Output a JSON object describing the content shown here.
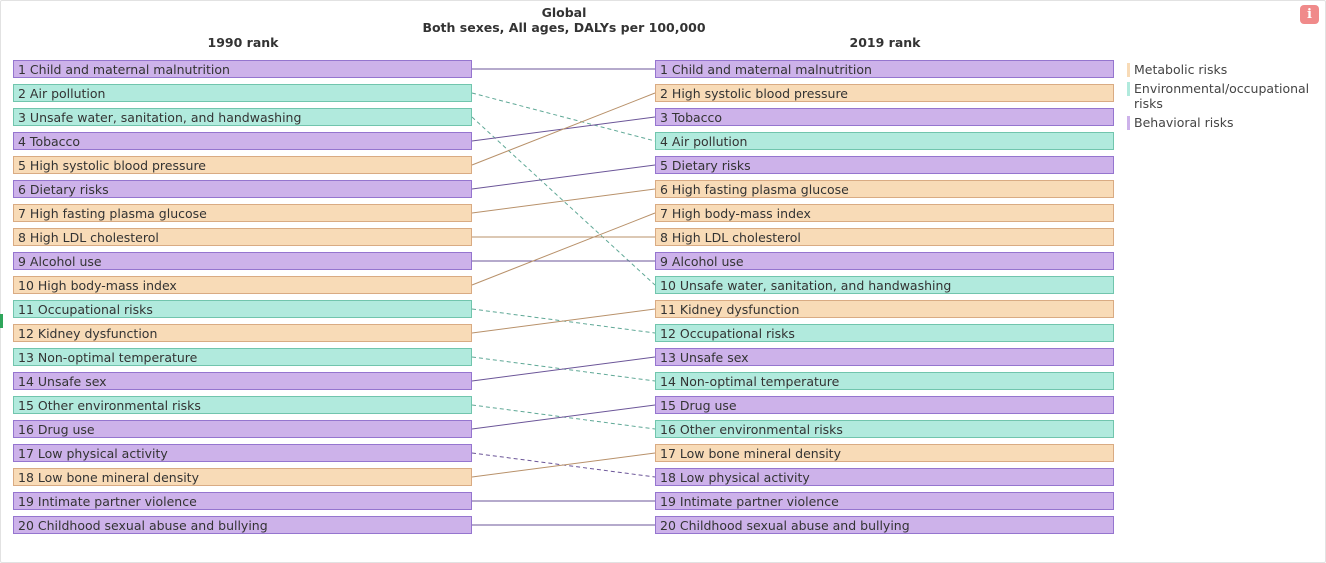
{
  "header": {
    "title": "Global",
    "subtitle": "Both sexes, All ages, DALYs per 100,000",
    "left_column": "1990 rank",
    "right_column": "2019 rank",
    "info_icon": "info-icon",
    "info_label": "i"
  },
  "colors": {
    "Metabolic": "#f8dbb7",
    "Environmental": "#b1eadd",
    "Behavioral": "#cdb2ea",
    "line_Metabolic": "#b8916a",
    "line_Environmental": "#5fa896",
    "line_Behavioral": "#6b5598"
  },
  "legend": [
    {
      "key": "Metabolic",
      "label": "Metabolic risks"
    },
    {
      "key": "Environmental",
      "label": "Environmental/occupational risks"
    },
    {
      "key": "Behavioral",
      "label": "Behavioral risks"
    }
  ],
  "chart_data": {
    "type": "table",
    "title": "Global",
    "subtitle": "Both sexes, All ages, DALYs per 100,000",
    "categories": [
      "Metabolic risks",
      "Environmental/occupational risks",
      "Behavioral risks"
    ],
    "left": [
      {
        "rank": 1,
        "name": "Child and maternal malnutrition",
        "cat": "Behavioral"
      },
      {
        "rank": 2,
        "name": "Air pollution",
        "cat": "Environmental"
      },
      {
        "rank": 3,
        "name": "Unsafe water, sanitation, and handwashing",
        "cat": "Environmental"
      },
      {
        "rank": 4,
        "name": "Tobacco",
        "cat": "Behavioral"
      },
      {
        "rank": 5,
        "name": "High systolic blood pressure",
        "cat": "Metabolic"
      },
      {
        "rank": 6,
        "name": "Dietary risks",
        "cat": "Behavioral"
      },
      {
        "rank": 7,
        "name": "High fasting plasma glucose",
        "cat": "Metabolic"
      },
      {
        "rank": 8,
        "name": "High LDL cholesterol",
        "cat": "Metabolic"
      },
      {
        "rank": 9,
        "name": "Alcohol use",
        "cat": "Behavioral"
      },
      {
        "rank": 10,
        "name": "High body-mass index",
        "cat": "Metabolic"
      },
      {
        "rank": 11,
        "name": "Occupational risks",
        "cat": "Environmental"
      },
      {
        "rank": 12,
        "name": "Kidney dysfunction",
        "cat": "Metabolic"
      },
      {
        "rank": 13,
        "name": "Non-optimal temperature",
        "cat": "Environmental"
      },
      {
        "rank": 14,
        "name": "Unsafe sex",
        "cat": "Behavioral"
      },
      {
        "rank": 15,
        "name": "Other environmental risks",
        "cat": "Environmental"
      },
      {
        "rank": 16,
        "name": "Drug use",
        "cat": "Behavioral"
      },
      {
        "rank": 17,
        "name": "Low physical activity",
        "cat": "Behavioral"
      },
      {
        "rank": 18,
        "name": "Low bone mineral density",
        "cat": "Metabolic"
      },
      {
        "rank": 19,
        "name": "Intimate partner violence",
        "cat": "Behavioral"
      },
      {
        "rank": 20,
        "name": "Childhood sexual abuse and bullying",
        "cat": "Behavioral"
      }
    ],
    "right": [
      {
        "rank": 1,
        "name": "Child and maternal malnutrition",
        "cat": "Behavioral"
      },
      {
        "rank": 2,
        "name": "High systolic blood pressure",
        "cat": "Metabolic"
      },
      {
        "rank": 3,
        "name": "Tobacco",
        "cat": "Behavioral"
      },
      {
        "rank": 4,
        "name": "Air pollution",
        "cat": "Environmental"
      },
      {
        "rank": 5,
        "name": "Dietary risks",
        "cat": "Behavioral"
      },
      {
        "rank": 6,
        "name": "High fasting plasma glucose",
        "cat": "Metabolic"
      },
      {
        "rank": 7,
        "name": "High body-mass index",
        "cat": "Metabolic"
      },
      {
        "rank": 8,
        "name": "High LDL cholesterol",
        "cat": "Metabolic"
      },
      {
        "rank": 9,
        "name": "Alcohol use",
        "cat": "Behavioral"
      },
      {
        "rank": 10,
        "name": "Unsafe water, sanitation, and handwashing",
        "cat": "Environmental"
      },
      {
        "rank": 11,
        "name": "Kidney dysfunction",
        "cat": "Metabolic"
      },
      {
        "rank": 12,
        "name": "Occupational risks",
        "cat": "Environmental"
      },
      {
        "rank": 13,
        "name": "Unsafe sex",
        "cat": "Behavioral"
      },
      {
        "rank": 14,
        "name": "Non-optimal temperature",
        "cat": "Environmental"
      },
      {
        "rank": 15,
        "name": "Drug use",
        "cat": "Behavioral"
      },
      {
        "rank": 16,
        "name": "Other environmental risks",
        "cat": "Environmental"
      },
      {
        "rank": 17,
        "name": "Low bone mineral density",
        "cat": "Metabolic"
      },
      {
        "rank": 18,
        "name": "Low physical activity",
        "cat": "Behavioral"
      },
      {
        "rank": 19,
        "name": "Intimate partner violence",
        "cat": "Behavioral"
      },
      {
        "rank": 20,
        "name": "Childhood sexual abuse and bullying",
        "cat": "Behavioral"
      }
    ]
  }
}
